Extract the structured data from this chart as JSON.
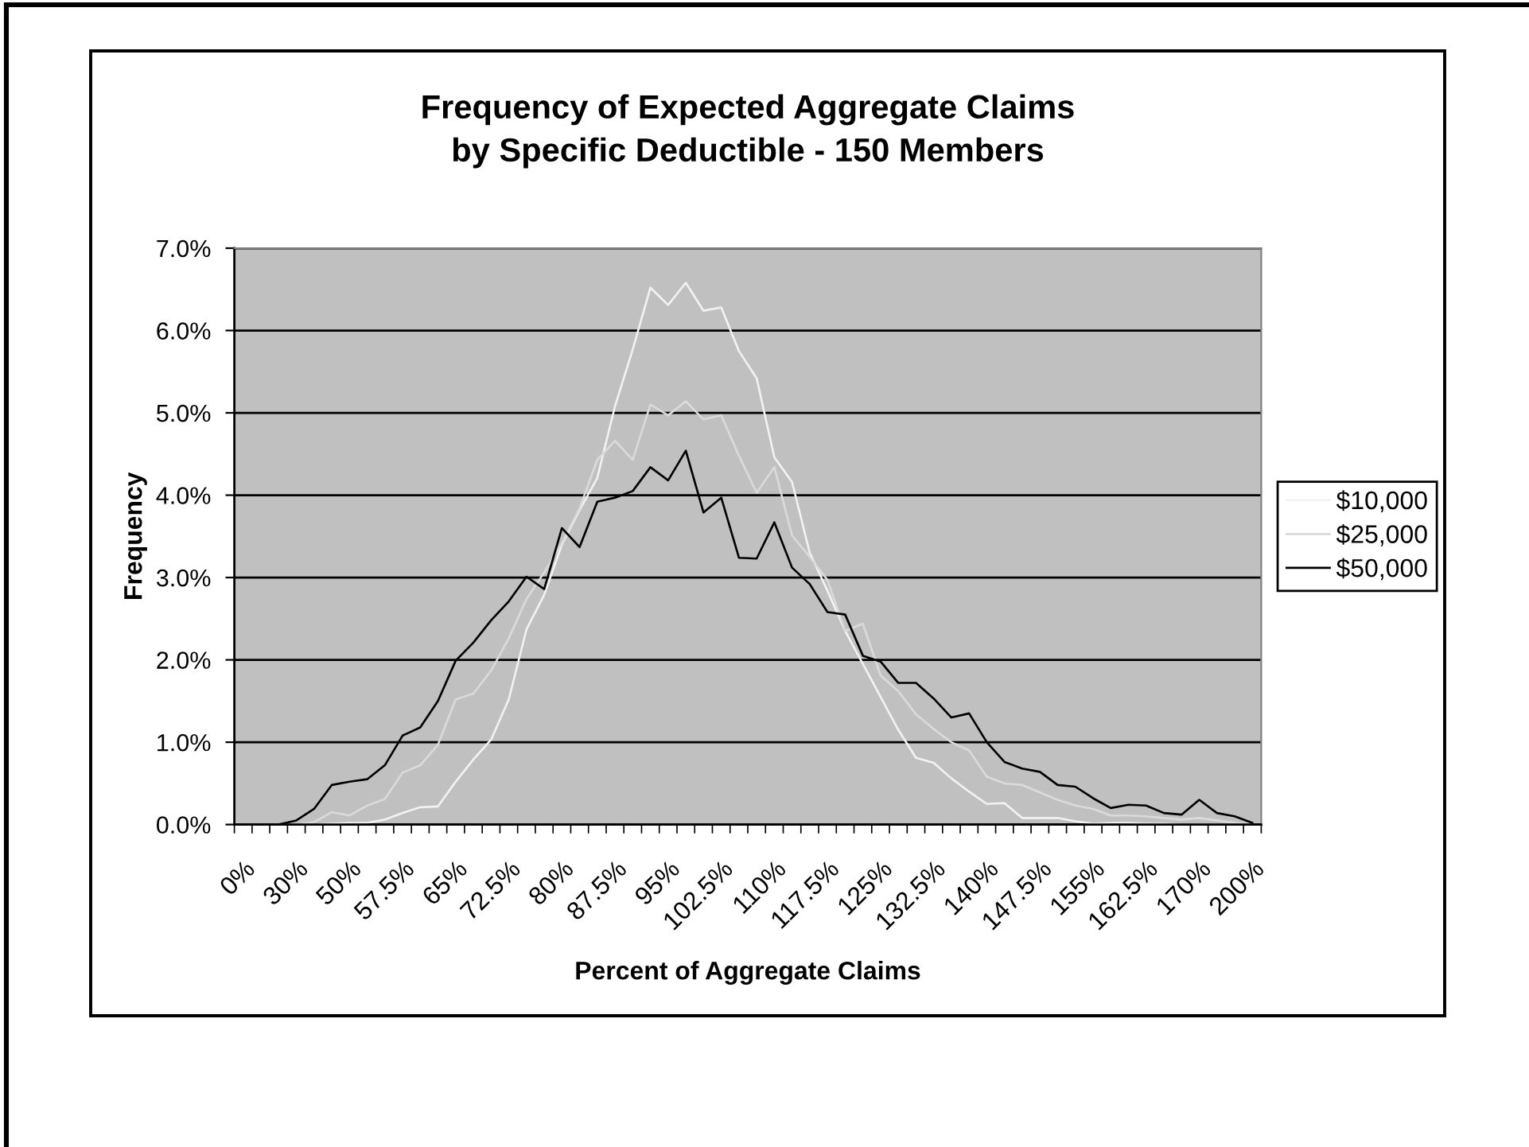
{
  "chart_data": {
    "type": "line",
    "title": "Frequency of Expected Aggregate Claims\nby Specific Deductible - 150 Members",
    "xlabel": "Percent of Aggregate Claims",
    "ylabel": "Frequency",
    "categories": [
      "0%",
      null,
      null,
      "30%",
      null,
      null,
      "50%",
      null,
      null,
      "57.5%",
      null,
      null,
      "65%",
      null,
      null,
      "72.5%",
      null,
      null,
      "80%",
      null,
      null,
      "87.5%",
      null,
      null,
      "95%",
      null,
      null,
      "102.5%",
      null,
      null,
      "110%",
      null,
      null,
      "117.5%",
      null,
      null,
      "125%",
      null,
      null,
      "132.5%",
      null,
      null,
      "140%",
      null,
      null,
      "147.5%",
      null,
      null,
      "155%",
      null,
      null,
      "162.5%",
      null,
      null,
      "170%",
      null,
      null,
      "200%"
    ],
    "series": [
      {
        "name": "$10,000",
        "color": "#f2f2f2",
        "values": [
          0,
          0,
          0,
          0,
          0,
          0.01,
          0.02,
          0.02,
          0.06,
          0.14,
          0.21,
          0.22,
          0.52,
          0.79,
          1.03,
          1.52,
          2.37,
          2.79,
          3.4,
          3.82,
          4.21,
          5.08,
          5.77,
          6.52,
          6.31,
          6.58,
          6.24,
          6.28,
          5.75,
          5.42,
          4.46,
          4.16,
          3.3,
          2.84,
          2.35,
          1.95,
          1.55,
          1.15,
          0.81,
          0.75,
          0.56,
          0.4,
          0.25,
          0.26,
          0.08,
          0.08,
          0.08,
          0.04,
          0.01,
          0.02,
          0.02,
          0.01,
          0.01,
          0,
          0,
          0,
          0,
          0
        ]
      },
      {
        "name": "$25,000",
        "color": "#dadada",
        "values": [
          0,
          0,
          0,
          0,
          0.03,
          0.15,
          0.11,
          0.23,
          0.31,
          0.63,
          0.72,
          0.97,
          1.52,
          1.59,
          1.87,
          2.26,
          2.74,
          3.06,
          3.42,
          3.84,
          4.43,
          4.66,
          4.43,
          5.1,
          4.97,
          5.14,
          4.92,
          4.97,
          4.48,
          4.03,
          4.34,
          3.51,
          3.25,
          2.97,
          2.35,
          2.44,
          1.81,
          1.62,
          1.34,
          1.16,
          1.0,
          0.9,
          0.58,
          0.5,
          0.48,
          0.39,
          0.3,
          0.23,
          0.19,
          0.11,
          0.11,
          0.1,
          0.08,
          0.06,
          0.08,
          0.05,
          0.02,
          0
        ]
      },
      {
        "name": "$50,000",
        "color": "#000000",
        "values": [
          0,
          0,
          0,
          0.05,
          0.19,
          0.48,
          0.52,
          0.55,
          0.72,
          1.08,
          1.18,
          1.5,
          1.99,
          2.21,
          2.48,
          2.71,
          3.01,
          2.86,
          3.6,
          3.37,
          3.92,
          3.97,
          4.05,
          4.34,
          4.18,
          4.54,
          3.79,
          3.97,
          3.24,
          3.23,
          3.67,
          3.12,
          2.92,
          2.58,
          2.55,
          2.05,
          1.98,
          1.72,
          1.72,
          1.53,
          1.3,
          1.35,
          1.0,
          0.76,
          0.68,
          0.64,
          0.48,
          0.46,
          0.32,
          0.2,
          0.24,
          0.23,
          0.14,
          0.12,
          0.3,
          0.14,
          0.1,
          0.02
        ]
      }
    ],
    "ylim": [
      0,
      7
    ],
    "yticks": [
      {
        "value": 0,
        "label": "0.0%"
      },
      {
        "value": 1,
        "label": "1.0%"
      },
      {
        "value": 2,
        "label": "2.0%"
      },
      {
        "value": 3,
        "label": "3.0%"
      },
      {
        "value": 4,
        "label": "4.0%"
      },
      {
        "value": 5,
        "label": "5.0%"
      },
      {
        "value": 6,
        "label": "6.0%"
      },
      {
        "value": 7,
        "label": "7.0%"
      }
    ],
    "grid": "y",
    "legend": "right",
    "marker": "none",
    "line_style": "solid"
  }
}
